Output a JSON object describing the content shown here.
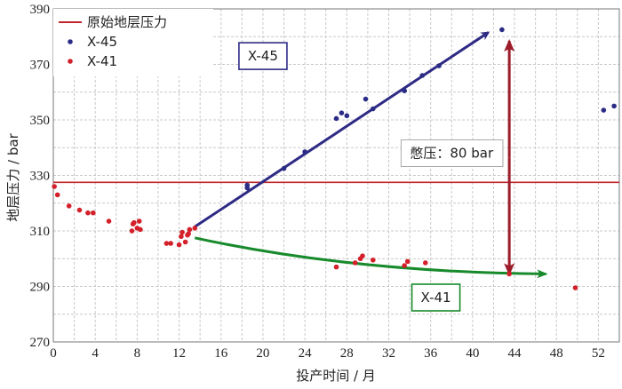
{
  "chart_data": {
    "type": "scatter",
    "xlabel": "投产时间 / 月",
    "ylabel": "地层压力 / bar",
    "xlim": [
      0,
      54
    ],
    "ylim": [
      270,
      390
    ],
    "x_ticks": [
      0,
      4,
      8,
      12,
      16,
      20,
      24,
      28,
      32,
      36,
      40,
      44,
      48,
      52
    ],
    "x_tick_labels": [
      "0",
      "4",
      "8",
      "12",
      "16",
      "20",
      "24",
      "28",
      "32",
      "36",
      "40",
      "44",
      "48",
      "52"
    ],
    "y_ticks": [
      270,
      290,
      310,
      330,
      350,
      370,
      390
    ],
    "y_tick_labels": [
      "270",
      "290",
      "310",
      "330",
      "350",
      "370",
      "390"
    ],
    "grid": true,
    "legend_position": "top-left",
    "legend": [
      {
        "label": "原始地层压力",
        "kind": "line",
        "color": "#c0262d"
      },
      {
        "label": "X-45",
        "kind": "marker",
        "color": "#2b2c86"
      },
      {
        "label": "X-41",
        "kind": "marker",
        "color": "#d4202a"
      }
    ],
    "reference_line": {
      "label": "原始地层压力",
      "y": 327.5,
      "color": "#c0262d"
    },
    "series": [
      {
        "name": "X-45",
        "color": "#2b2c86",
        "points": [
          [
            18.5,
            325.5
          ],
          [
            18.5,
            326.5
          ],
          [
            22,
            332.5
          ],
          [
            24,
            338.5
          ],
          [
            27,
            350.5
          ],
          [
            27.5,
            352.5
          ],
          [
            28,
            351.5
          ],
          [
            29.8,
            357.5
          ],
          [
            30.5,
            354
          ],
          [
            33.5,
            360.5
          ],
          [
            35.2,
            366
          ],
          [
            36.8,
            369.5
          ],
          [
            42.8,
            382.5
          ],
          [
            52.5,
            353.5
          ],
          [
            53.5,
            355
          ]
        ]
      },
      {
        "name": "X-41",
        "color": "#d4202a",
        "points": [
          [
            0.1,
            326
          ],
          [
            0.4,
            323
          ],
          [
            1.5,
            319
          ],
          [
            2.5,
            317.5
          ],
          [
            3.3,
            316.5
          ],
          [
            3.8,
            316.5
          ],
          [
            5.3,
            313.5
          ],
          [
            7.5,
            310
          ],
          [
            7.6,
            312.5
          ],
          [
            7.7,
            313
          ],
          [
            8,
            311
          ],
          [
            8.2,
            313.5
          ],
          [
            8.3,
            310.5
          ],
          [
            10.8,
            305.5
          ],
          [
            11.2,
            305.5
          ],
          [
            12,
            305
          ],
          [
            12.2,
            308
          ],
          [
            12.3,
            309.5
          ],
          [
            12.6,
            306
          ],
          [
            12.8,
            308.5
          ],
          [
            12.9,
            309
          ],
          [
            13,
            310.5
          ],
          [
            13.5,
            311
          ],
          [
            27,
            297
          ],
          [
            28.8,
            298.5
          ],
          [
            29.3,
            300
          ],
          [
            29.5,
            301
          ],
          [
            30.5,
            299.5
          ],
          [
            33.5,
            297.5
          ],
          [
            33.8,
            299
          ],
          [
            35.5,
            298.5
          ],
          [
            43.5,
            294.5
          ],
          [
            49.8,
            289.5
          ]
        ]
      }
    ],
    "trend_arrows": [
      {
        "series": "X-45",
        "color": "#2e2b85",
        "from": [
          13.5,
          311.5
        ],
        "to": [
          41.5,
          381.5
        ]
      },
      {
        "series": "X-41",
        "color": "#178a2b",
        "from": [
          13.5,
          307.5
        ],
        "to": [
          47,
          294.5
        ],
        "curved": true
      }
    ],
    "annotations": [
      {
        "text": "X-45",
        "at": [
          20,
          373
        ],
        "border": "#2e2b85"
      },
      {
        "text": "X-41",
        "at": [
          36.5,
          286
        ],
        "border": "#178a2b"
      },
      {
        "text": "憋压：80 bar",
        "at": [
          38,
          338
        ]
      }
    ],
    "double_arrow": {
      "x": 43.5,
      "y1": 294.5,
      "y2": 378.5,
      "color": "#9c1c2a"
    }
  }
}
